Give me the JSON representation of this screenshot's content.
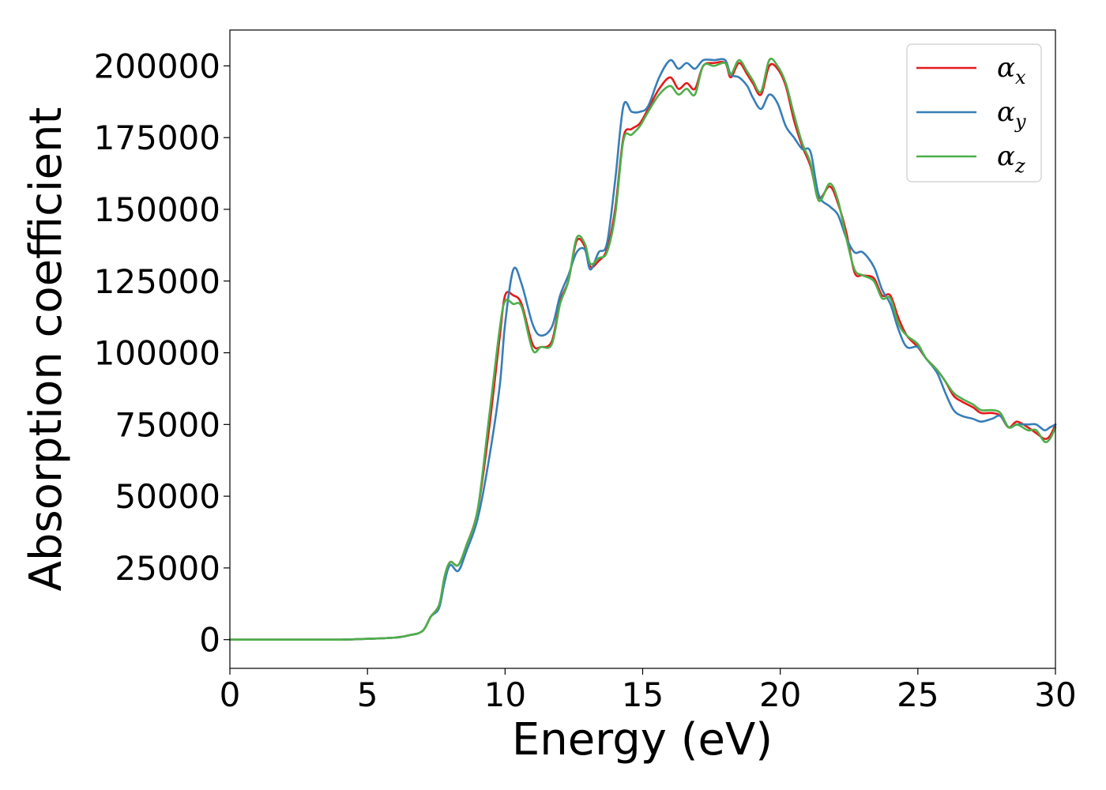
{
  "chart_data": {
    "type": "line",
    "xlabel": "Energy (eV)",
    "ylabel": "Absorption coefficient",
    "xlim": [
      0,
      30
    ],
    "ylim": [
      -10000,
      212500
    ],
    "xticks": [
      0,
      5,
      10,
      15,
      20,
      25,
      30
    ],
    "yticks": [
      0,
      25000,
      50000,
      75000,
      100000,
      125000,
      150000,
      175000,
      200000
    ],
    "legend_position": "top-right",
    "grid": false,
    "series": [
      {
        "name": "α",
        "subscript": "x",
        "color": "#e41a1c",
        "x": [
          0,
          2,
          4,
          5,
          6,
          6.5,
          7,
          7.3,
          7.6,
          7.8,
          8.0,
          8.3,
          8.6,
          9.0,
          9.4,
          9.8,
          10.0,
          10.3,
          10.6,
          11.0,
          11.3,
          11.7,
          12.0,
          12.3,
          12.6,
          12.9,
          13.1,
          13.4,
          13.7,
          14.0,
          14.3,
          14.6,
          14.9,
          15.2,
          15.6,
          16.0,
          16.3,
          16.6,
          16.9,
          17.2,
          17.6,
          18.0,
          18.2,
          18.5,
          18.8,
          19.0,
          19.3,
          19.6,
          19.9,
          20.2,
          20.5,
          20.8,
          21.1,
          21.4,
          21.8,
          22.1,
          22.4,
          22.7,
          23.0,
          23.4,
          23.7,
          24.0,
          24.3,
          24.6,
          25.0,
          25.3,
          25.7,
          26.0,
          26.3,
          26.6,
          27.0,
          27.3,
          27.7,
          28.0,
          28.3,
          28.6,
          29.0,
          29.3,
          29.6,
          29.8,
          30.0
        ],
        "values": [
          0,
          0,
          0,
          300,
          700,
          1500,
          3000,
          8000,
          12000,
          21000,
          27000,
          26000,
          33000,
          45000,
          72000,
          105000,
          120000,
          120000,
          117000,
          103000,
          102000,
          104000,
          118000,
          125000,
          139000,
          137000,
          130000,
          132000,
          136000,
          150000,
          175000,
          178000,
          180000,
          185000,
          192000,
          196000,
          192000,
          194000,
          192000,
          200000,
          201000,
          201000,
          196000,
          201000,
          197000,
          194000,
          190000,
          200000,
          199000,
          193000,
          181000,
          172000,
          165000,
          154000,
          158000,
          152000,
          142000,
          128000,
          127000,
          126000,
          120000,
          120000,
          112000,
          106000,
          102000,
          98000,
          94000,
          90000,
          85000,
          83000,
          81000,
          79000,
          79000,
          78000,
          74000,
          76000,
          74000,
          72000,
          70000,
          71000,
          75000
        ]
      },
      {
        "name": "α",
        "subscript": "y",
        "color": "#377eb8",
        "x": [
          0,
          2,
          4,
          5,
          6,
          6.5,
          7,
          7.3,
          7.6,
          7.8,
          8.0,
          8.3,
          8.6,
          9.0,
          9.4,
          9.8,
          10.0,
          10.3,
          10.6,
          11.0,
          11.3,
          11.7,
          12.0,
          12.3,
          12.6,
          12.9,
          13.1,
          13.4,
          13.7,
          14.0,
          14.3,
          14.6,
          14.9,
          15.2,
          15.6,
          16.0,
          16.3,
          16.6,
          16.9,
          17.2,
          17.6,
          18.0,
          18.2,
          18.5,
          18.8,
          19.0,
          19.3,
          19.6,
          19.9,
          20.2,
          20.5,
          20.8,
          21.1,
          21.4,
          21.8,
          22.1,
          22.4,
          22.7,
          23.0,
          23.4,
          23.7,
          24.0,
          24.3,
          24.6,
          25.0,
          25.3,
          25.7,
          26.0,
          26.3,
          26.6,
          27.0,
          27.3,
          27.7,
          28.0,
          28.3,
          28.6,
          29.0,
          29.3,
          29.6,
          29.8,
          30.0
        ],
        "values": [
          0,
          0,
          0,
          300,
          700,
          1500,
          3000,
          8000,
          11000,
          20000,
          26000,
          24000,
          31000,
          42000,
          62000,
          88000,
          110000,
          129000,
          124000,
          110000,
          106000,
          109000,
          120000,
          127000,
          135000,
          136000,
          129000,
          135000,
          138000,
          160000,
          186000,
          184000,
          184000,
          186000,
          196000,
          202000,
          199000,
          201000,
          199000,
          202000,
          202000,
          202000,
          197000,
          196000,
          193000,
          189000,
          185000,
          190000,
          187000,
          179000,
          175000,
          171000,
          170000,
          155000,
          151000,
          148000,
          140000,
          135000,
          135000,
          130000,
          122000,
          117000,
          108000,
          102000,
          102000,
          98000,
          93000,
          86000,
          80000,
          78000,
          77000,
          76000,
          77000,
          78000,
          74000,
          75000,
          75000,
          75000,
          73000,
          74000,
          75000
        ]
      },
      {
        "name": "α",
        "subscript": "z",
        "color": "#4daf4a",
        "x": [
          0,
          2,
          4,
          5,
          6,
          6.5,
          7,
          7.3,
          7.6,
          7.8,
          8.0,
          8.3,
          8.6,
          9.0,
          9.4,
          9.8,
          10.0,
          10.3,
          10.6,
          11.0,
          11.3,
          11.7,
          12.0,
          12.3,
          12.6,
          12.9,
          13.1,
          13.4,
          13.7,
          14.0,
          14.3,
          14.6,
          14.9,
          15.2,
          15.6,
          16.0,
          16.3,
          16.6,
          16.9,
          17.2,
          17.6,
          18.0,
          18.2,
          18.5,
          18.8,
          19.0,
          19.3,
          19.6,
          19.9,
          20.2,
          20.5,
          20.8,
          21.1,
          21.4,
          21.8,
          22.1,
          22.4,
          22.7,
          23.0,
          23.4,
          23.7,
          24.0,
          24.3,
          24.6,
          25.0,
          25.3,
          25.7,
          26.0,
          26.3,
          26.6,
          27.0,
          27.3,
          27.7,
          28.0,
          28.3,
          28.6,
          29.0,
          29.3,
          29.6,
          29.8,
          30.0
        ],
        "values": [
          0,
          0,
          0,
          300,
          700,
          1500,
          3000,
          8000,
          12000,
          22000,
          27000,
          26000,
          33000,
          45000,
          76000,
          108000,
          118000,
          117000,
          116000,
          101000,
          102000,
          103000,
          117000,
          125000,
          140000,
          138000,
          131000,
          133000,
          135000,
          148000,
          174000,
          176000,
          179000,
          184000,
          190000,
          193000,
          190000,
          192000,
          190000,
          200000,
          200000,
          201000,
          197000,
          202000,
          198000,
          195000,
          191000,
          202000,
          200000,
          194000,
          183000,
          173000,
          166000,
          153000,
          159000,
          153000,
          140000,
          129000,
          127000,
          125000,
          119000,
          119000,
          110000,
          106000,
          103000,
          98000,
          94000,
          90000,
          86000,
          84000,
          82000,
          80000,
          80000,
          79000,
          74000,
          75000,
          73000,
          73000,
          69000,
          70000,
          74000
        ]
      }
    ]
  }
}
